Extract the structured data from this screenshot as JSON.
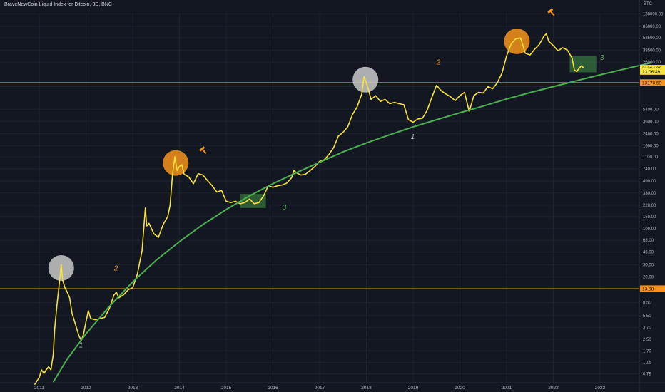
{
  "header": {
    "title": "BraveNewCoin Liquid Index for Bitcoin, 3D, BNC"
  },
  "chart_data": {
    "type": "line",
    "scale": "log",
    "y_unit": "BTC",
    "x_ticks": [
      "2011",
      "2012",
      "2013",
      "2014",
      "2015",
      "2016",
      "2017",
      "2018",
      "2019",
      "2020",
      "2021",
      "2022",
      "2023"
    ],
    "y_ticks": [
      0.79,
      1.15,
      1.7,
      2.5,
      3.7,
      5.5,
      8.5,
      13.5,
      20.0,
      30.0,
      46.0,
      68.0,
      100.0,
      150.0,
      220.0,
      330.0,
      490.0,
      740.0,
      1100.0,
      1600.0,
      2400.0,
      3600.0,
      5400.0,
      11500.0,
      26000.0,
      38500.0,
      58500.0,
      86000.0,
      130000.0
    ],
    "y_tick_labels": [
      "0.79",
      "1.15",
      "1.70",
      "2.50",
      "3.70",
      "5.50",
      "8.50",
      "13.50",
      "20.00",
      "30.00",
      "46.00",
      "68.00",
      "100.00",
      "150.00",
      "220.00",
      "330.00",
      "490.00",
      "740.00",
      "1100.00",
      "1600.00",
      "2400.00",
      "3600.00",
      "5400.00",
      "11500.00",
      "26000.00",
      "38500.00",
      "58500.00",
      "86000.00",
      "130000.00"
    ],
    "y_tick_display": [
      "0.79",
      "1.15",
      "1.70",
      "2.50",
      "3.70",
      "5.50",
      "8.50",
      "",
      "20.00",
      "30.00",
      "46.00",
      "68.00",
      "100.00",
      "150.00",
      "220.00",
      "330.00",
      "490.00",
      "740.00",
      "1100.00",
      "1600.00",
      "2400.00",
      "3600.00",
      "5400.00",
      "",
      "26000.00",
      "38500.00",
      "58500.00",
      "86000.00",
      "130000.00"
    ],
    "price_labels": [
      {
        "text": "21294.90",
        "value": 21294.9,
        "style": "current"
      },
      {
        "text": "13:06:49",
        "value": 19000,
        "style": "current-sub"
      },
      {
        "text": "13170.59",
        "value": 13170.59,
        "style": "level"
      },
      {
        "text": "13.58",
        "value": 13.58,
        "style": "level"
      }
    ],
    "horizontal_levels": [
      13170.59,
      13.58
    ],
    "series": [
      {
        "color": "#f7e13b",
        "points": [
          [
            2010.9,
            0.55
          ],
          [
            2011.0,
            0.7
          ],
          [
            2011.05,
            0.9
          ],
          [
            2011.1,
            0.8
          ],
          [
            2011.15,
            0.9
          ],
          [
            2011.2,
            1.0
          ],
          [
            2011.25,
            0.9
          ],
          [
            2011.3,
            1.5
          ],
          [
            2011.33,
            3.5
          ],
          [
            2011.38,
            8
          ],
          [
            2011.42,
            14
          ],
          [
            2011.45,
            22
          ],
          [
            2011.47,
            30
          ],
          [
            2011.5,
            18
          ],
          [
            2011.55,
            14
          ],
          [
            2011.6,
            12
          ],
          [
            2011.65,
            10
          ],
          [
            2011.7,
            6
          ],
          [
            2011.78,
            4
          ],
          [
            2011.85,
            2.8
          ],
          [
            2011.9,
            2.4
          ],
          [
            2011.95,
            3
          ],
          [
            2012.0,
            4.5
          ],
          [
            2012.05,
            6.5
          ],
          [
            2012.1,
            5
          ],
          [
            2012.2,
            4.8
          ],
          [
            2012.3,
            5
          ],
          [
            2012.4,
            5.2
          ],
          [
            2012.5,
            7
          ],
          [
            2012.6,
            11
          ],
          [
            2012.65,
            12
          ],
          [
            2012.7,
            10
          ],
          [
            2012.8,
            11
          ],
          [
            2012.9,
            13
          ],
          [
            2013.0,
            14
          ],
          [
            2013.1,
            22
          ],
          [
            2013.2,
            48
          ],
          [
            2013.27,
            200
          ],
          [
            2013.3,
            110
          ],
          [
            2013.35,
            120
          ],
          [
            2013.45,
            85
          ],
          [
            2013.55,
            75
          ],
          [
            2013.65,
            115
          ],
          [
            2013.75,
            150
          ],
          [
            2013.8,
            220
          ],
          [
            2013.85,
            600
          ],
          [
            2013.9,
            1100
          ],
          [
            2013.95,
            700
          ],
          [
            2014.0,
            800
          ],
          [
            2014.05,
            850
          ],
          [
            2014.1,
            620
          ],
          [
            2014.2,
            560
          ],
          [
            2014.3,
            450
          ],
          [
            2014.4,
            630
          ],
          [
            2014.5,
            600
          ],
          [
            2014.6,
            500
          ],
          [
            2014.7,
            420
          ],
          [
            2014.8,
            340
          ],
          [
            2014.9,
            360
          ],
          [
            2015.0,
            250
          ],
          [
            2015.1,
            240
          ],
          [
            2015.2,
            250
          ],
          [
            2015.3,
            230
          ],
          [
            2015.4,
            240
          ],
          [
            2015.5,
            270
          ],
          [
            2015.6,
            230
          ],
          [
            2015.7,
            240
          ],
          [
            2015.8,
            300
          ],
          [
            2015.9,
            420
          ],
          [
            2016.0,
            400
          ],
          [
            2016.1,
            420
          ],
          [
            2016.2,
            430
          ],
          [
            2016.3,
            460
          ],
          [
            2016.4,
            550
          ],
          [
            2016.45,
            700
          ],
          [
            2016.5,
            650
          ],
          [
            2016.6,
            600
          ],
          [
            2016.7,
            620
          ],
          [
            2016.8,
            700
          ],
          [
            2016.9,
            800
          ],
          [
            2017.0,
            950
          ],
          [
            2017.1,
            1000
          ],
          [
            2017.2,
            1200
          ],
          [
            2017.3,
            1500
          ],
          [
            2017.4,
            2200
          ],
          [
            2017.5,
            2500
          ],
          [
            2017.6,
            3000
          ],
          [
            2017.7,
            4500
          ],
          [
            2017.8,
            5800
          ],
          [
            2017.9,
            9000
          ],
          [
            2017.95,
            16000
          ],
          [
            2018.0,
            13000
          ],
          [
            2018.05,
            10000
          ],
          [
            2018.1,
            7500
          ],
          [
            2018.2,
            8500
          ],
          [
            2018.3,
            7000
          ],
          [
            2018.4,
            7500
          ],
          [
            2018.5,
            6500
          ],
          [
            2018.6,
            6800
          ],
          [
            2018.7,
            6500
          ],
          [
            2018.8,
            6300
          ],
          [
            2018.9,
            3800
          ],
          [
            2019.0,
            3500
          ],
          [
            2019.1,
            3900
          ],
          [
            2019.2,
            4000
          ],
          [
            2019.3,
            5200
          ],
          [
            2019.4,
            8000
          ],
          [
            2019.5,
            12000
          ],
          [
            2019.6,
            10000
          ],
          [
            2019.7,
            9000
          ],
          [
            2019.8,
            8200
          ],
          [
            2019.9,
            7200
          ],
          [
            2020.0,
            8500
          ],
          [
            2020.1,
            9500
          ],
          [
            2020.2,
            5000
          ],
          [
            2020.3,
            8500
          ],
          [
            2020.4,
            9500
          ],
          [
            2020.5,
            9300
          ],
          [
            2020.6,
            11500
          ],
          [
            2020.7,
            10700
          ],
          [
            2020.8,
            13000
          ],
          [
            2020.9,
            18000
          ],
          [
            2021.0,
            32000
          ],
          [
            2021.1,
            48000
          ],
          [
            2021.2,
            57000
          ],
          [
            2021.3,
            58000
          ],
          [
            2021.4,
            35000
          ],
          [
            2021.5,
            33000
          ],
          [
            2021.6,
            40000
          ],
          [
            2021.7,
            47000
          ],
          [
            2021.8,
            62000
          ],
          [
            2021.85,
            67000
          ],
          [
            2021.9,
            52000
          ],
          [
            2022.0,
            45000
          ],
          [
            2022.1,
            38000
          ],
          [
            2022.2,
            42000
          ],
          [
            2022.3,
            39000
          ],
          [
            2022.4,
            30000
          ],
          [
            2022.45,
            20000
          ],
          [
            2022.5,
            19000
          ],
          [
            2022.55,
            21000
          ],
          [
            2022.6,
            23000
          ],
          [
            2022.65,
            21294.9
          ]
        ]
      },
      {
        "color": "#4caf50",
        "points": [
          [
            2011.3,
            0.6
          ],
          [
            2011.6,
            1.3
          ],
          [
            2012.0,
            3.0
          ],
          [
            2012.5,
            7.5
          ],
          [
            2013.0,
            17
          ],
          [
            2013.5,
            35
          ],
          [
            2014.0,
            65
          ],
          [
            2014.5,
            115
          ],
          [
            2015.0,
            190
          ],
          [
            2015.5,
            300
          ],
          [
            2016.0,
            450
          ],
          [
            2016.5,
            650
          ],
          [
            2017.0,
            920
          ],
          [
            2017.5,
            1300
          ],
          [
            2018.0,
            1750
          ],
          [
            2018.5,
            2300
          ],
          [
            2019.0,
            3000
          ],
          [
            2019.5,
            3800
          ],
          [
            2020.0,
            4800
          ],
          [
            2020.5,
            6000
          ],
          [
            2021.0,
            7600
          ],
          [
            2021.5,
            9400
          ],
          [
            2022.0,
            11500
          ],
          [
            2022.5,
            14000
          ],
          [
            2023.0,
            17000
          ],
          [
            2023.5,
            20500
          ],
          [
            2024.1,
            25500
          ]
        ]
      }
    ],
    "annotations": [
      {
        "text": "1",
        "x": 2011.85,
        "y": 1.9,
        "color": "#b2b5be"
      },
      {
        "text": "2",
        "x": 2012.6,
        "y": 25,
        "color": "#f7931a"
      },
      {
        "text": "3",
        "x": 2016.2,
        "y": 190,
        "color": "#4caf50"
      },
      {
        "text": "1",
        "x": 2018.95,
        "y": 2000,
        "color": "#b2b5be"
      },
      {
        "text": "2",
        "x": 2019.5,
        "y": 24000,
        "color": "#f7931a"
      },
      {
        "text": "3",
        "x": 2023.0,
        "y": 28000,
        "color": "#4caf50"
      }
    ],
    "circles": [
      {
        "x": 2011.47,
        "y": 27,
        "color": "#c9c9c9"
      },
      {
        "x": 2013.92,
        "y": 900,
        "color": "#f7931a"
      },
      {
        "x": 2017.98,
        "y": 14500,
        "color": "#c9c9c9"
      },
      {
        "x": 2021.22,
        "y": 52000,
        "color": "#f7931a"
      }
    ],
    "zones": [
      {
        "x0": 2015.3,
        "x1": 2015.85,
        "ylo": 200,
        "yhi": 320
      },
      {
        "x0": 2022.35,
        "x1": 2022.92,
        "ylo": 18500,
        "yhi": 32000
      }
    ],
    "hammers": [
      {
        "x": 2014.5,
        "y": 1400
      },
      {
        "x": 2021.95,
        "y": 140000
      }
    ]
  }
}
